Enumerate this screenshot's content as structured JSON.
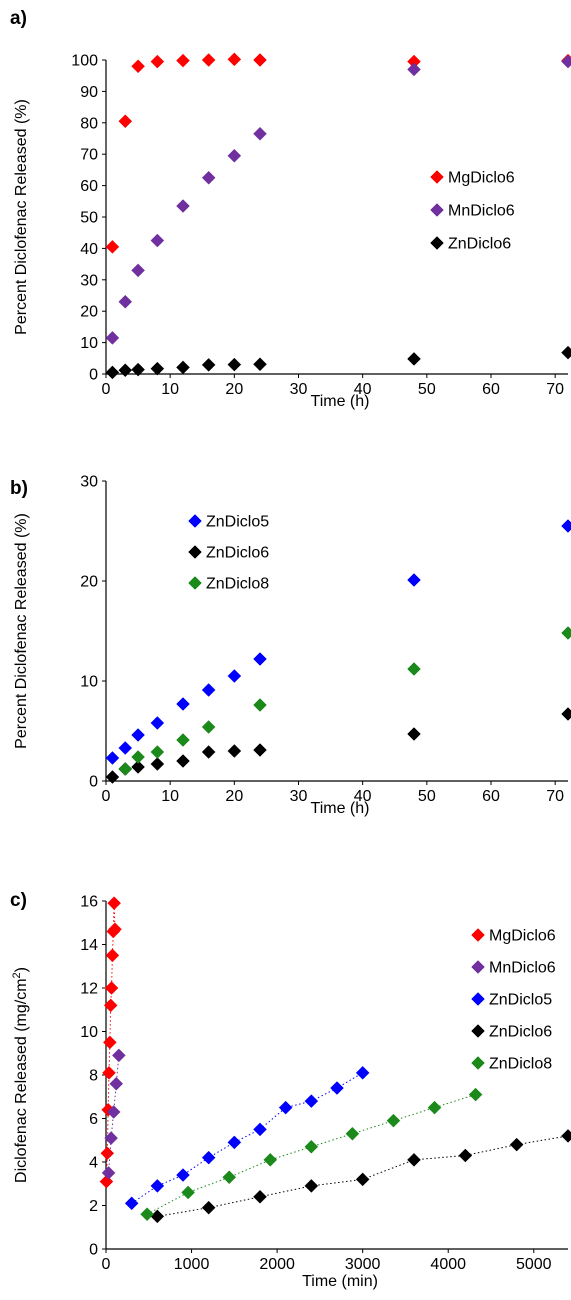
{
  "chart_data": [
    {
      "panel_label": "a)",
      "type": "scatter",
      "xlabel": "Time (h)",
      "ylabel": "Percent Diclofenac Released (%)",
      "xlim": [
        0,
        72
      ],
      "ylim": [
        0,
        100
      ],
      "xticks": [
        "0",
        "10",
        "20",
        "30",
        "40",
        "50",
        "60",
        "70"
      ],
      "yticks": [
        "0",
        "10",
        "20",
        "30",
        "40",
        "50",
        "60",
        "70",
        "80",
        "90",
        "100"
      ],
      "legend_position": "middle-right",
      "series": [
        {
          "name": "MgDiclo6",
          "color": "#ff0000",
          "x": [
            1,
            3,
            5,
            8,
            12,
            16,
            20,
            24,
            48,
            72
          ],
          "y": [
            40.5,
            80.5,
            98,
            99.5,
            99.8,
            100,
            100.2,
            100,
            99.5,
            99.8
          ]
        },
        {
          "name": "MnDiclo6",
          "color": "#7030a0",
          "x": [
            1,
            3,
            5,
            8,
            12,
            16,
            20,
            24,
            48,
            72
          ],
          "y": [
            11.5,
            23,
            33,
            42.5,
            53.5,
            62.5,
            69.5,
            76.5,
            97,
            99.5
          ]
        },
        {
          "name": "ZnDiclo6",
          "color": "#000000",
          "x": [
            1,
            3,
            5,
            8,
            12,
            16,
            20,
            24,
            48,
            72
          ],
          "y": [
            0.5,
            1.2,
            1.4,
            1.7,
            2.1,
            2.9,
            3,
            3.1,
            4.8,
            6.8
          ]
        }
      ]
    },
    {
      "panel_label": "b)",
      "type": "scatter",
      "xlabel": "Time (h)",
      "ylabel": "Percent Diclofenac Released (%)",
      "xlim": [
        0,
        72
      ],
      "ylim": [
        0,
        30
      ],
      "xticks": [
        "0",
        "10",
        "20",
        "30",
        "40",
        "50",
        "60",
        "70"
      ],
      "yticks": [
        "0",
        "10",
        "20",
        "30"
      ],
      "legend_position": "top-left",
      "series": [
        {
          "name": "ZnDiclo5",
          "color": "#0000ff",
          "x": [
            1,
            3,
            5,
            8,
            12,
            16,
            20,
            24,
            48,
            72
          ],
          "y": [
            2.3,
            3.3,
            4.6,
            5.8,
            7.7,
            9.1,
            10.5,
            12.2,
            20.1,
            25.5
          ]
        },
        {
          "name": "ZnDiclo6",
          "color": "#000000",
          "x": [
            1,
            3,
            5,
            8,
            12,
            16,
            20,
            24,
            48,
            72
          ],
          "y": [
            0.4,
            1.2,
            1.4,
            1.7,
            2,
            2.9,
            3,
            3.1,
            4.7,
            6.7
          ]
        },
        {
          "name": "ZnDiclo8",
          "color": "#1b8a1b",
          "x": [
            3,
            5,
            8,
            12,
            16,
            24,
            48,
            72
          ],
          "y": [
            1.2,
            2.4,
            2.9,
            4.1,
            5.4,
            7.6,
            11.2,
            14.8
          ]
        }
      ]
    },
    {
      "panel_label": "c)",
      "type": "scatter",
      "xlabel": "Time (min)",
      "ylabel_main": "Diclofenac Released (mg/cm",
      "ylabel_sup": "2",
      "ylabel_end": ")",
      "xlim": [
        0,
        5400
      ],
      "ylim": [
        0,
        16
      ],
      "xticks": [
        "0",
        "1000",
        "2000",
        "3000",
        "4000",
        "5000"
      ],
      "yticks": [
        "0",
        "2",
        "4",
        "6",
        "8",
        "10",
        "12",
        "14",
        "16"
      ],
      "legend_position": "top-right",
      "series": [
        {
          "name": "MgDiclo6",
          "color": "#ff0000",
          "x": [
            5,
            15,
            25,
            35,
            45,
            55,
            65,
            75,
            85,
            95,
            105
          ],
          "y": [
            3.1,
            4.4,
            6.4,
            8.1,
            9.5,
            11.2,
            12,
            13.5,
            14.6,
            15.9,
            14.7
          ]
        },
        {
          "name": "MnDiclo6",
          "color": "#7030a0",
          "x": [
            30,
            60,
            90,
            120,
            150
          ],
          "y": [
            3.5,
            5.1,
            6.3,
            7.6,
            8.9
          ]
        },
        {
          "name": "ZnDiclo5",
          "color": "#0000ff",
          "x": [
            300,
            600,
            900,
            1200,
            1500,
            1800,
            2100,
            2400,
            2700,
            3000
          ],
          "y": [
            2.1,
            2.9,
            3.4,
            4.2,
            4.9,
            5.5,
            6.5,
            6.8,
            7.4,
            8.1
          ]
        },
        {
          "name": "ZnDiclo6",
          "color": "#000000",
          "x": [
            600,
            1200,
            1800,
            2400,
            3000,
            3600,
            4200,
            4800,
            5400
          ],
          "y": [
            1.5,
            1.9,
            2.4,
            2.9,
            3.2,
            4.1,
            4.3,
            4.8,
            5.2
          ]
        },
        {
          "name": "ZnDiclo8",
          "color": "#1b8a1b",
          "x": [
            480,
            960,
            1440,
            1920,
            2400,
            2880,
            3360,
            3840,
            4320
          ],
          "y": [
            1.6,
            2.6,
            3.3,
            4.1,
            4.7,
            5.3,
            5.9,
            6.5,
            7.1
          ]
        }
      ]
    }
  ]
}
